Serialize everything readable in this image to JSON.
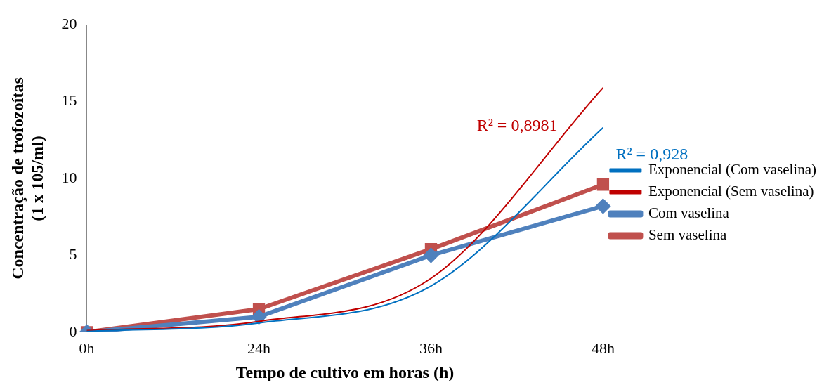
{
  "chart_data": {
    "type": "line",
    "xlabel": "Tempo de cultivo em horas (h)",
    "ylabel": "Concentração de trofozoítas (1 x 105/ml)",
    "categories": [
      "0h",
      "24h",
      "36h",
      "48h"
    ],
    "ylim": [
      0,
      20
    ],
    "yticks": [
      0,
      5,
      10,
      15,
      20
    ],
    "grid": false,
    "legend": "right",
    "line_style": "solid",
    "series": [
      {
        "name": "Com vaselina",
        "color": "#4f81bd",
        "marker": "diamond",
        "values": [
          0,
          1.0,
          5.0,
          8.2
        ]
      },
      {
        "name": "Sem vaselina",
        "color": "#c0504d",
        "marker": "square",
        "values": [
          0,
          1.5,
          5.4,
          9.6
        ]
      },
      {
        "name": "Exponencial (Com vaselina)",
        "color": "#0070c0",
        "marker": "none",
        "values": [
          0.05,
          0.6,
          3.0,
          13.3
        ]
      },
      {
        "name": "Exponencial (Sem vaselina)",
        "color": "#c00000",
        "marker": "none",
        "values": [
          0.1,
          0.7,
          3.5,
          15.9
        ]
      }
    ],
    "annotations": [
      "R² = 0,928",
      "R² = 0,8981"
    ]
  }
}
